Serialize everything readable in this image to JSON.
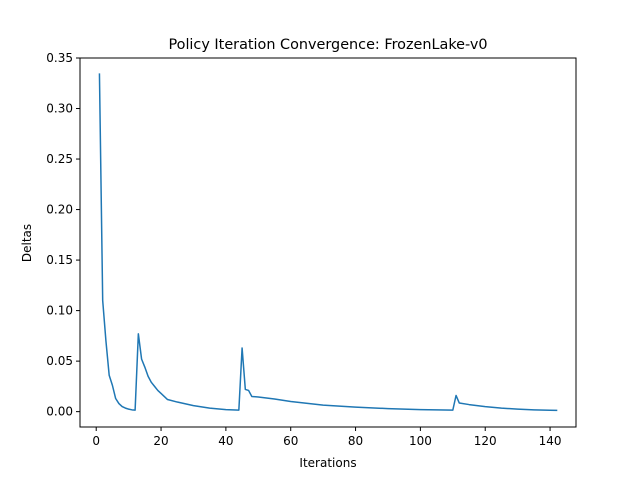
{
  "chart_data": {
    "type": "line",
    "title": "Policy Iteration Convergence: FrozenLake-v0",
    "xlabel": "Iterations",
    "ylabel": "Deltas",
    "xlim": [
      -5,
      148
    ],
    "ylim": [
      -0.0152,
      0.35
    ],
    "xticks": [
      0,
      20,
      40,
      60,
      80,
      100,
      120,
      140
    ],
    "yticks": [
      0.0,
      0.05,
      0.1,
      0.15,
      0.2,
      0.25,
      0.3,
      0.35
    ],
    "ytick_labels": [
      "0.00",
      "0.05",
      "0.10",
      "0.15",
      "0.20",
      "0.25",
      "0.30",
      "0.35"
    ],
    "grid": false,
    "series": [
      {
        "color": "#1f77b4",
        "x": [
          1,
          2,
          3,
          4,
          5,
          6,
          7,
          8,
          9,
          10,
          11,
          12,
          13,
          14,
          15,
          16,
          17,
          18,
          19,
          20,
          22,
          25,
          30,
          35,
          40,
          44,
          45,
          46,
          47,
          48,
          50,
          55,
          60,
          70,
          80,
          90,
          100,
          105,
          110,
          111,
          112,
          115,
          120,
          125,
          130,
          135,
          140,
          142
        ],
        "y": [
          0.334,
          0.11,
          0.07,
          0.036,
          0.026,
          0.013,
          0.008,
          0.005,
          0.0035,
          0.0025,
          0.0018,
          0.0015,
          0.077,
          0.052,
          0.044,
          0.035,
          0.029,
          0.025,
          0.021,
          0.018,
          0.012,
          0.0095,
          0.006,
          0.0035,
          0.002,
          0.0015,
          0.063,
          0.022,
          0.021,
          0.015,
          0.0145,
          0.0125,
          0.01,
          0.0065,
          0.0045,
          0.003,
          0.002,
          0.0017,
          0.0015,
          0.016,
          0.0085,
          0.007,
          0.005,
          0.0035,
          0.0025,
          0.0018,
          0.0014,
          0.0013
        ]
      }
    ]
  }
}
